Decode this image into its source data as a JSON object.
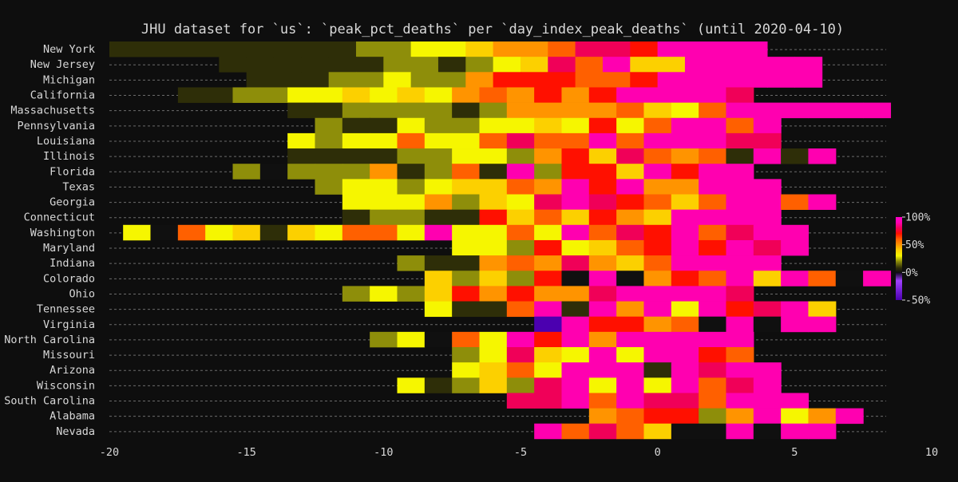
{
  "chart_data": {
    "type": "heatmap",
    "title": "JHU dataset for `us`: `peak_pct_deaths` per `day_index_peak_deaths` (until 2020-04-10)",
    "xlabel": "",
    "ylabel": "",
    "xlim": [
      -20,
      10
    ],
    "x_ticks": [
      -20,
      -15,
      -10,
      -5,
      0,
      5,
      10
    ],
    "x_tick_labels": [
      "-20",
      "-15",
      "-10",
      "-5",
      "0",
      "5",
      "10"
    ],
    "grid": "horizontal dashed",
    "colorbar": {
      "range": [
        -50,
        100
      ],
      "ticks": [
        100,
        50,
        0,
        -50
      ],
      "tick_labels": [
        "100%",
        "50%",
        "0%",
        "-50%"
      ],
      "stops": [
        {
          "v": -50,
          "color": "#4b00b0"
        },
        {
          "v": -15,
          "color": "#a040ff"
        },
        {
          "v": -1,
          "color": "#160a26"
        },
        {
          "v": 0,
          "color": "#101010"
        },
        {
          "v": 8,
          "color": "#2e2e08"
        },
        {
          "v": 20,
          "color": "#8e8e0a"
        },
        {
          "v": 30,
          "color": "#f6f600"
        },
        {
          "v": 40,
          "color": "#fcd000"
        },
        {
          "v": 50,
          "color": "#ff9400"
        },
        {
          "v": 60,
          "color": "#ff6000"
        },
        {
          "v": 70,
          "color": "#ff1000"
        },
        {
          "v": 80,
          "color": "#f00058"
        },
        {
          "v": 90,
          "color": "#ff00b0"
        },
        {
          "v": 100,
          "color": "#ff00c8"
        }
      ]
    },
    "rows": [
      {
        "state": "New York",
        "start": -20,
        "values": [
          8,
          8,
          8,
          8,
          8,
          8,
          8,
          8,
          8,
          20,
          20,
          30,
          30,
          40,
          50,
          50,
          60,
          80,
          80,
          70,
          90,
          90,
          90,
          90
        ]
      },
      {
        "state": "New Jersey",
        "start": -16,
        "values": [
          8,
          8,
          8,
          8,
          8,
          8,
          20,
          20,
          8,
          20,
          30,
          40,
          80,
          60,
          90,
          40,
          40,
          90,
          90,
          90,
          90,
          90
        ]
      },
      {
        "state": "Michigan",
        "start": -15,
        "values": [
          8,
          8,
          8,
          20,
          20,
          30,
          20,
          20,
          50,
          70,
          70,
          70,
          60,
          60,
          70,
          90,
          90,
          90,
          90,
          90,
          90
        ]
      },
      {
        "state": "California",
        "start": -17.5,
        "values": [
          8,
          8,
          20,
          20,
          30,
          30,
          40,
          30,
          40,
          30,
          50,
          60,
          50,
          70,
          50,
          70,
          90,
          90,
          90,
          90,
          80
        ]
      },
      {
        "state": "Massachusetts",
        "start": -13.5,
        "values": [
          8,
          8,
          20,
          20,
          20,
          20,
          8,
          20,
          50,
          50,
          50,
          50,
          60,
          40,
          30,
          60,
          90,
          90,
          90,
          90,
          90,
          90
        ]
      },
      {
        "state": "Pennsylvania",
        "start": -12.5,
        "values": [
          20,
          8,
          8,
          30,
          20,
          20,
          30,
          30,
          40,
          30,
          70,
          30,
          60,
          90,
          90,
          60,
          90
        ]
      },
      {
        "state": "Louisiana",
        "start": -13.5,
        "values": [
          30,
          20,
          30,
          30,
          60,
          30,
          30,
          60,
          80,
          60,
          60,
          90,
          60,
          90,
          90,
          90,
          80,
          80
        ]
      },
      {
        "state": "Illinois",
        "start": -13.5,
        "values": [
          8,
          8,
          8,
          8,
          20,
          20,
          30,
          30,
          20,
          50,
          70,
          40,
          80,
          60,
          50,
          60,
          8,
          90,
          8,
          90
        ]
      },
      {
        "state": "Florida",
        "start": -15.5,
        "values": [
          20,
          0,
          20,
          20,
          20,
          50,
          8,
          20,
          60,
          8,
          90,
          20,
          70,
          70,
          40,
          90,
          70,
          90,
          90
        ]
      },
      {
        "state": "Texas",
        "start": -12.5,
        "values": [
          20,
          30,
          30,
          20,
          30,
          40,
          40,
          60,
          50,
          90,
          70,
          90,
          50,
          50,
          90,
          90,
          90
        ]
      },
      {
        "state": "Georgia",
        "start": -11.5,
        "values": [
          30,
          30,
          30,
          50,
          20,
          40,
          30,
          80,
          90,
          80,
          70,
          60,
          40,
          60,
          90,
          90,
          60,
          90
        ]
      },
      {
        "state": "Connecticut",
        "start": -11.5,
        "values": [
          8,
          20,
          20,
          8,
          8,
          70,
          40,
          60,
          40,
          70,
          50,
          40,
          90,
          90,
          90,
          90
        ]
      },
      {
        "state": "Washington",
        "start": -19.5,
        "values": [
          30,
          0,
          60,
          30,
          40,
          8,
          40,
          30,
          60,
          60,
          30,
          90,
          30,
          30,
          60,
          30,
          90,
          60,
          80,
          70,
          90,
          60,
          80,
          90,
          90
        ]
      },
      {
        "state": "Maryland",
        "start": -7.5,
        "values": [
          30,
          30,
          20,
          70,
          30,
          40,
          60,
          70,
          90,
          70,
          90,
          80,
          90
        ]
      },
      {
        "state": "Indiana",
        "start": -9.5,
        "values": [
          20,
          8,
          8,
          50,
          60,
          50,
          80,
          50,
          40,
          60,
          90,
          90,
          90,
          90
        ]
      },
      {
        "state": "Colorado",
        "start": -8.5,
        "values": [
          40,
          20,
          40,
          20,
          70,
          0,
          90,
          0,
          50,
          70,
          60,
          90,
          40,
          90,
          60,
          0,
          90
        ]
      },
      {
        "state": "Ohio",
        "start": -11.5,
        "values": [
          20,
          30,
          20,
          40,
          70,
          50,
          70,
          50,
          50,
          80,
          90,
          90,
          90,
          90,
          80
        ]
      },
      {
        "state": "Tennessee",
        "start": -8.5,
        "values": [
          30,
          8,
          8,
          60,
          90,
          8,
          90,
          50,
          90,
          30,
          90,
          70,
          80,
          90,
          40
        ]
      },
      {
        "state": "Virginia",
        "start": -4.5,
        "values": [
          -50,
          90,
          70,
          70,
          50,
          60,
          0,
          90,
          0,
          90,
          90
        ]
      },
      {
        "state": "North Carolina",
        "start": -10.5,
        "values": [
          20,
          30,
          0,
          60,
          30,
          90,
          70,
          90,
          50,
          90,
          90,
          90,
          90,
          90
        ]
      },
      {
        "state": "Missouri",
        "start": -7.5,
        "values": [
          20,
          30,
          80,
          40,
          30,
          90,
          30,
          90,
          90,
          70,
          60
        ]
      },
      {
        "state": "Arizona",
        "start": -7.5,
        "values": [
          30,
          40,
          60,
          30,
          90,
          90,
          90,
          8,
          90,
          80,
          90,
          90
        ]
      },
      {
        "state": "Wisconsin",
        "start": -9.5,
        "values": [
          30,
          8,
          20,
          40,
          20,
          80,
          90,
          30,
          90,
          30,
          90,
          60,
          80,
          90
        ]
      },
      {
        "state": "South Carolina",
        "start": -5.5,
        "values": [
          80,
          80,
          90,
          60,
          90,
          80,
          80,
          60,
          90,
          90,
          90
        ]
      },
      {
        "state": "Alabama",
        "start": -2.5,
        "values": [
          50,
          60,
          70,
          70,
          20,
          50,
          90,
          30,
          50,
          90
        ]
      },
      {
        "state": "Nevada",
        "start": -4.5,
        "values": [
          90,
          60,
          80,
          60,
          40,
          0,
          0,
          90,
          0,
          90,
          90
        ]
      }
    ]
  }
}
